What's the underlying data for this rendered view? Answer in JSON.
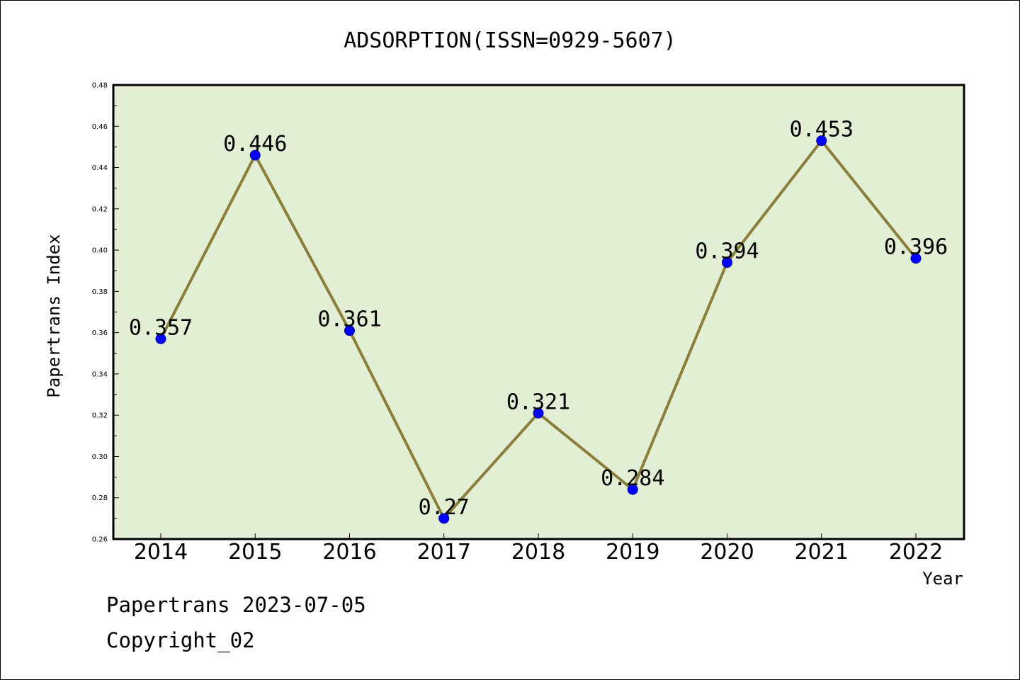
{
  "chart_data": {
    "type": "line",
    "title": "ADSORPTION(ISSN=0929-5607)",
    "xlabel": "Year",
    "ylabel": "Papertrans Index",
    "categories": [
      "2014",
      "2015",
      "2016",
      "2017",
      "2018",
      "2019",
      "2020",
      "2021",
      "2022"
    ],
    "values": [
      0.357,
      0.446,
      0.361,
      0.27,
      0.321,
      0.284,
      0.394,
      0.453,
      0.396
    ],
    "data_labels": [
      "0.357",
      "0.446",
      "0.361",
      "0.27",
      "0.321",
      "0.284",
      "0.394",
      "0.453",
      "0.396"
    ],
    "ylim": [
      0.26,
      0.48
    ],
    "yticks": [
      "0.26",
      "0.28",
      "0.30",
      "0.32",
      "0.34",
      "0.36",
      "0.38",
      "0.40",
      "0.42",
      "0.44",
      "0.46",
      "0.48"
    ],
    "grid": false,
    "legend": "none",
    "colors": {
      "plot_background": "#e2efd5",
      "line": "#8b7d3a",
      "marker": "#0000ff"
    }
  },
  "footer": {
    "source": "Papertrans 2023-07-05",
    "copyright": "Copyright_02"
  }
}
